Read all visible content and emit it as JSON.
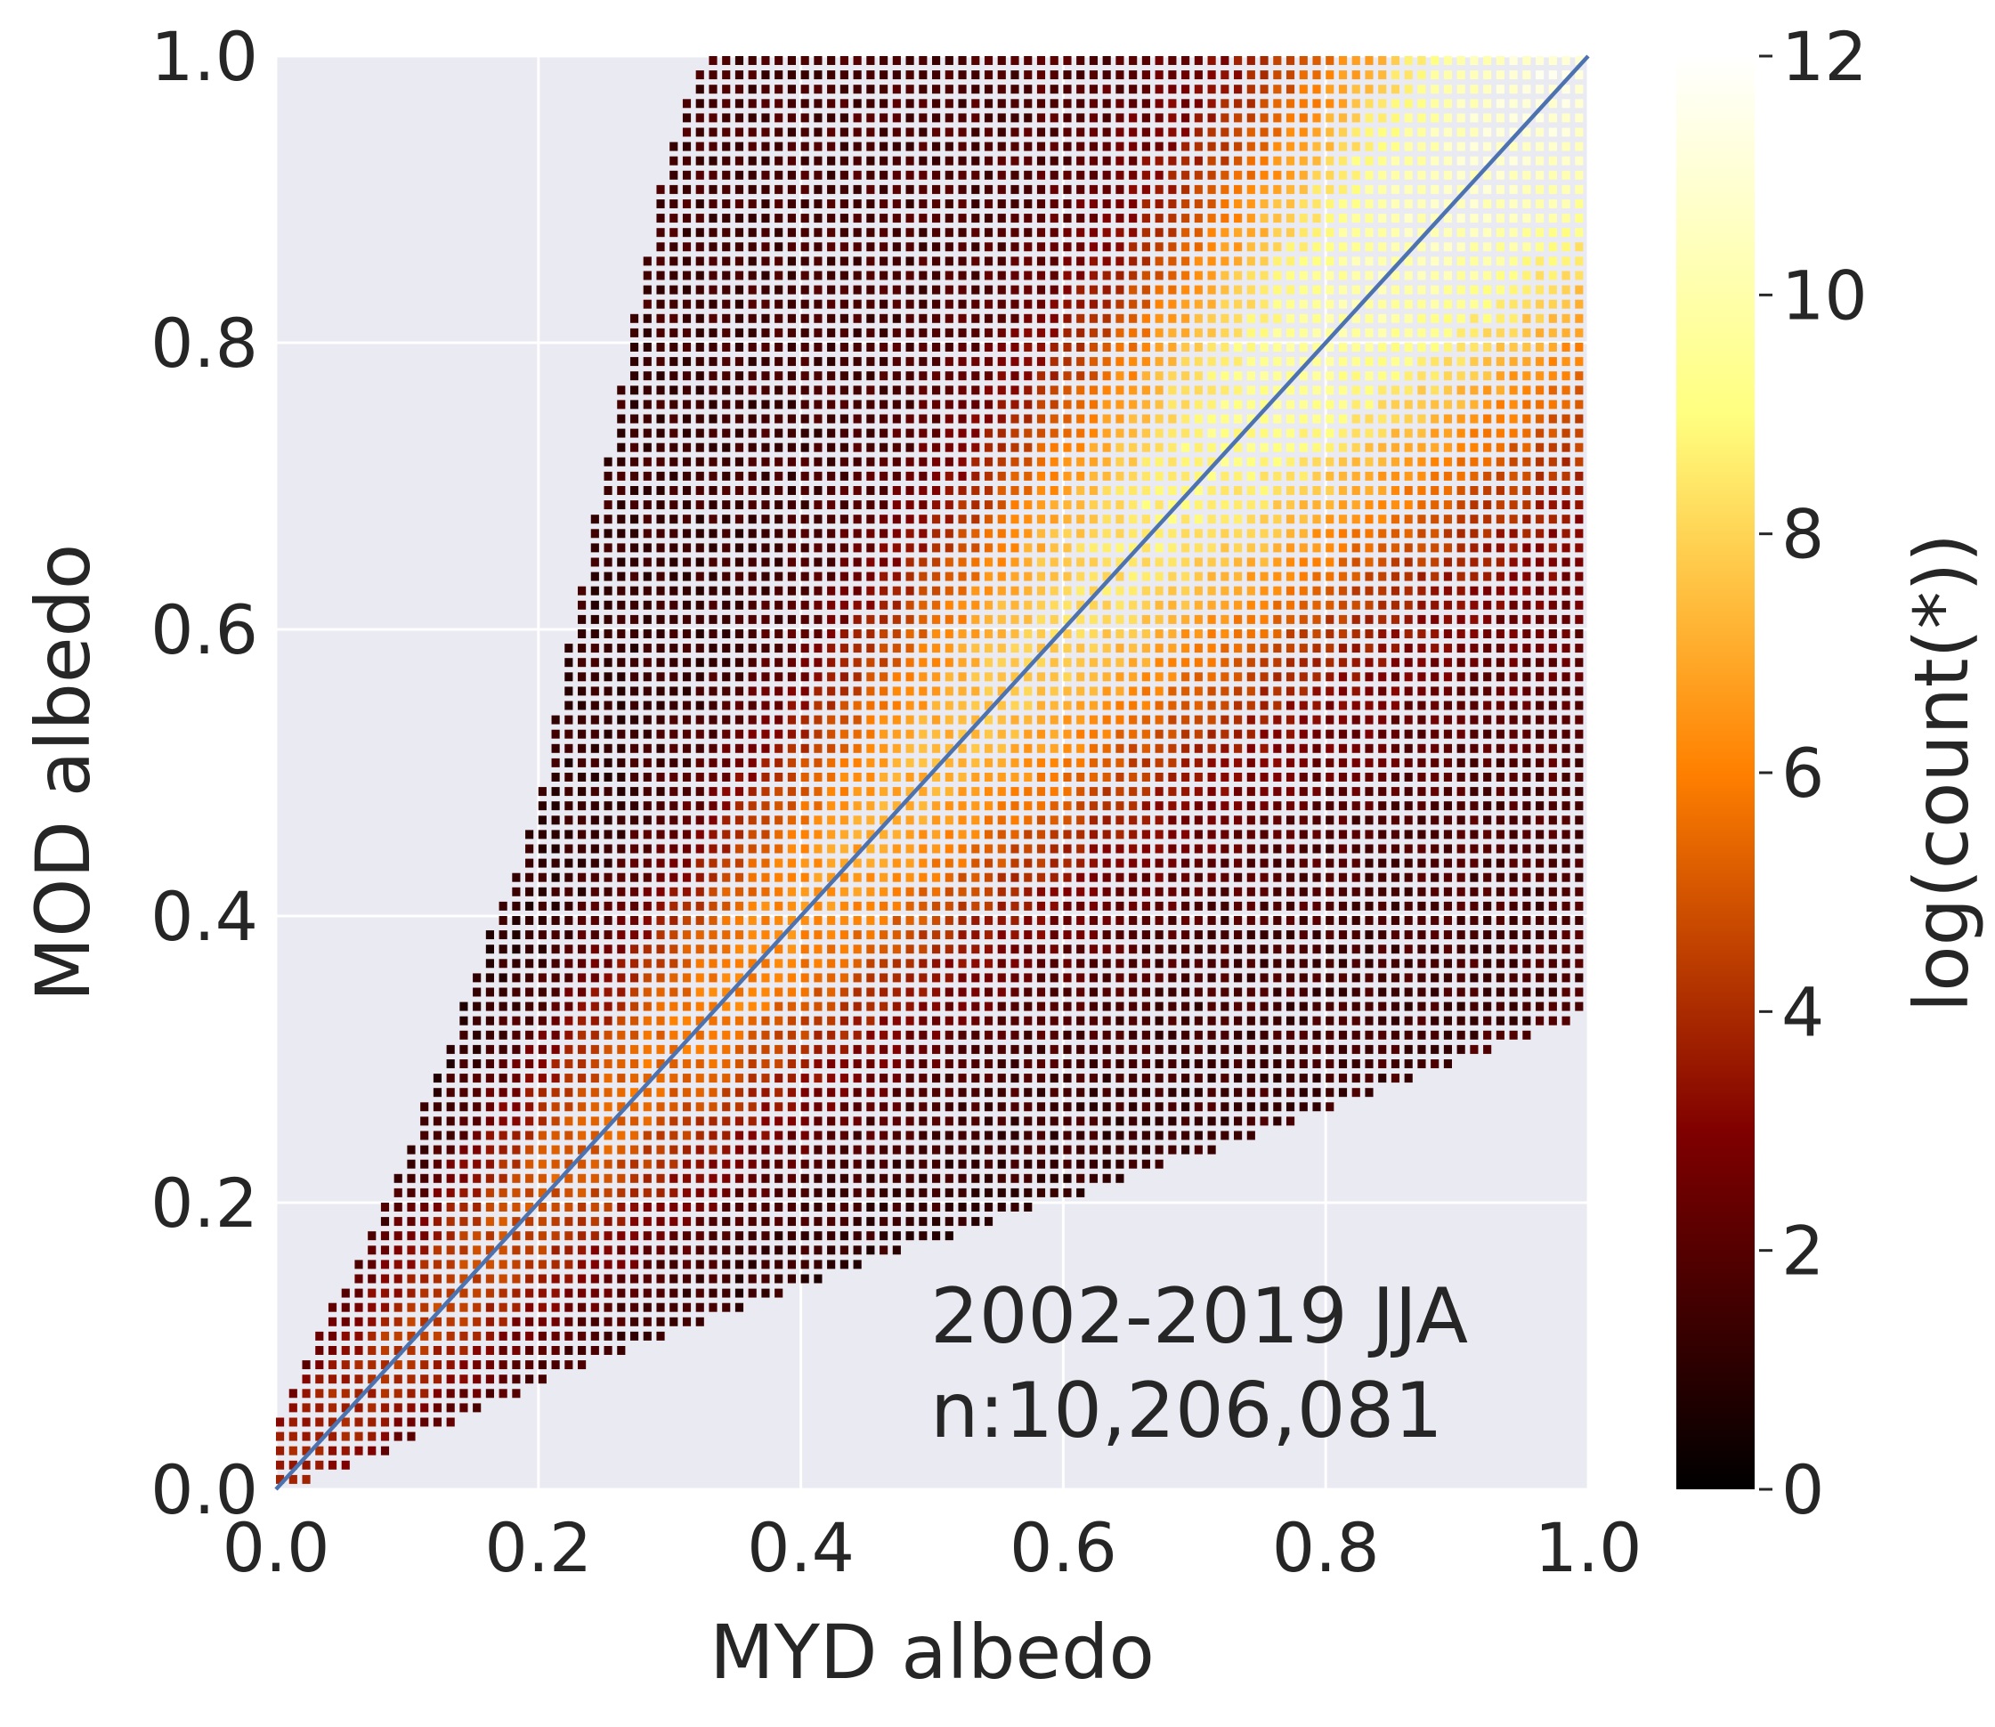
{
  "chart_data": {
    "type": "heatmap",
    "xlabel": "MYD albedo",
    "ylabel": "MOD albedo",
    "xlim": [
      0.0,
      1.0
    ],
    "ylim": [
      0.0,
      1.0
    ],
    "xticks": [
      "0.0",
      "0.2",
      "0.4",
      "0.6",
      "0.8",
      "1.0"
    ],
    "yticks": [
      "0.0",
      "0.2",
      "0.4",
      "0.6",
      "0.8",
      "1.0"
    ],
    "grid": true,
    "colorbar": {
      "label": "log(count(*))",
      "range": [
        0,
        12
      ],
      "ticks": [
        "0",
        "2",
        "4",
        "6",
        "8",
        "10",
        "12"
      ],
      "colormap": "afmhot",
      "colors": [
        "#000000",
        "#800000",
        "#ff8000",
        "#ffff80",
        "#ffffff"
      ]
    },
    "bins": 100,
    "domain": {
      "lower_edge": [
        [
          0.0,
          0.0
        ],
        [
          0.05,
          0.01
        ],
        [
          0.2,
          0.07
        ],
        [
          0.4,
          0.14
        ],
        [
          0.6,
          0.2
        ],
        [
          0.8,
          0.26
        ],
        [
          1.0,
          0.33
        ]
      ],
      "upper_edge": [
        [
          0.0,
          0.04
        ],
        [
          0.1,
          0.23
        ],
        [
          0.2,
          0.47
        ],
        [
          0.3,
          0.93
        ],
        [
          0.33,
          1.0
        ],
        [
          1.0,
          1.0
        ]
      ]
    },
    "density_peak_log_count": 11.5,
    "identity_line": {
      "from": [
        0.0,
        0.0
      ],
      "to": [
        1.0,
        1.0
      ],
      "color": "#4c72b0"
    },
    "annotation": [
      "2002-2019 JJA",
      "n:10,206,081"
    ]
  }
}
